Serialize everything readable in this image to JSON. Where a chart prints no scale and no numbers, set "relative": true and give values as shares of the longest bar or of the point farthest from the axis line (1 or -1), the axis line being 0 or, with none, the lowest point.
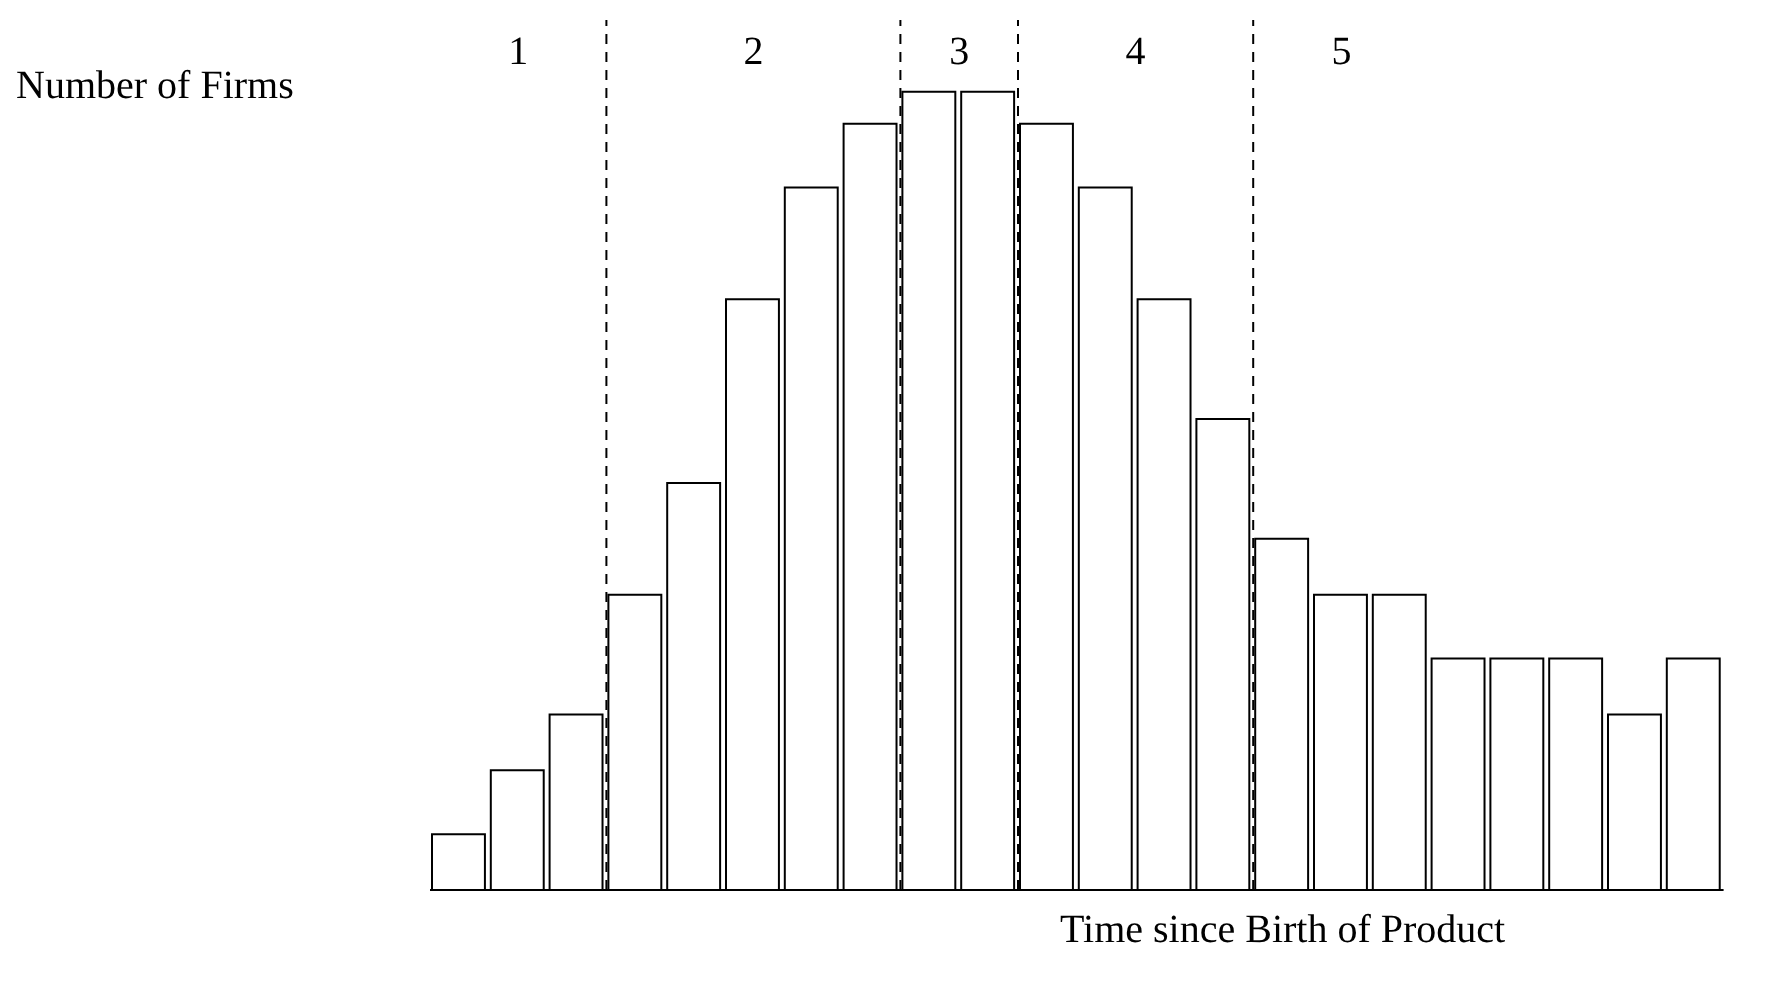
{
  "chart_data": {
    "type": "bar",
    "relative": true,
    "ylabel": "Number of Firms",
    "xlabel": "Time since Birth of Product",
    "categories": [
      null,
      null,
      null,
      null,
      null,
      null,
      null,
      null,
      null,
      null,
      null,
      null,
      null,
      null,
      null,
      null,
      null,
      null,
      null,
      null,
      null,
      null
    ],
    "values": [
      0.07,
      0.15,
      0.22,
      0.37,
      0.51,
      0.74,
      0.88,
      0.96,
      1,
      1,
      0.96,
      0.88,
      0.74,
      0.59,
      0.44,
      0.37,
      0.37,
      0.29,
      0.29,
      0.29,
      0.22,
      0.29
    ],
    "color": "#ffffff",
    "legend": false,
    "grid": false,
    "annotations": [
      "1",
      "2",
      "3",
      "4",
      "5"
    ]
  }
}
